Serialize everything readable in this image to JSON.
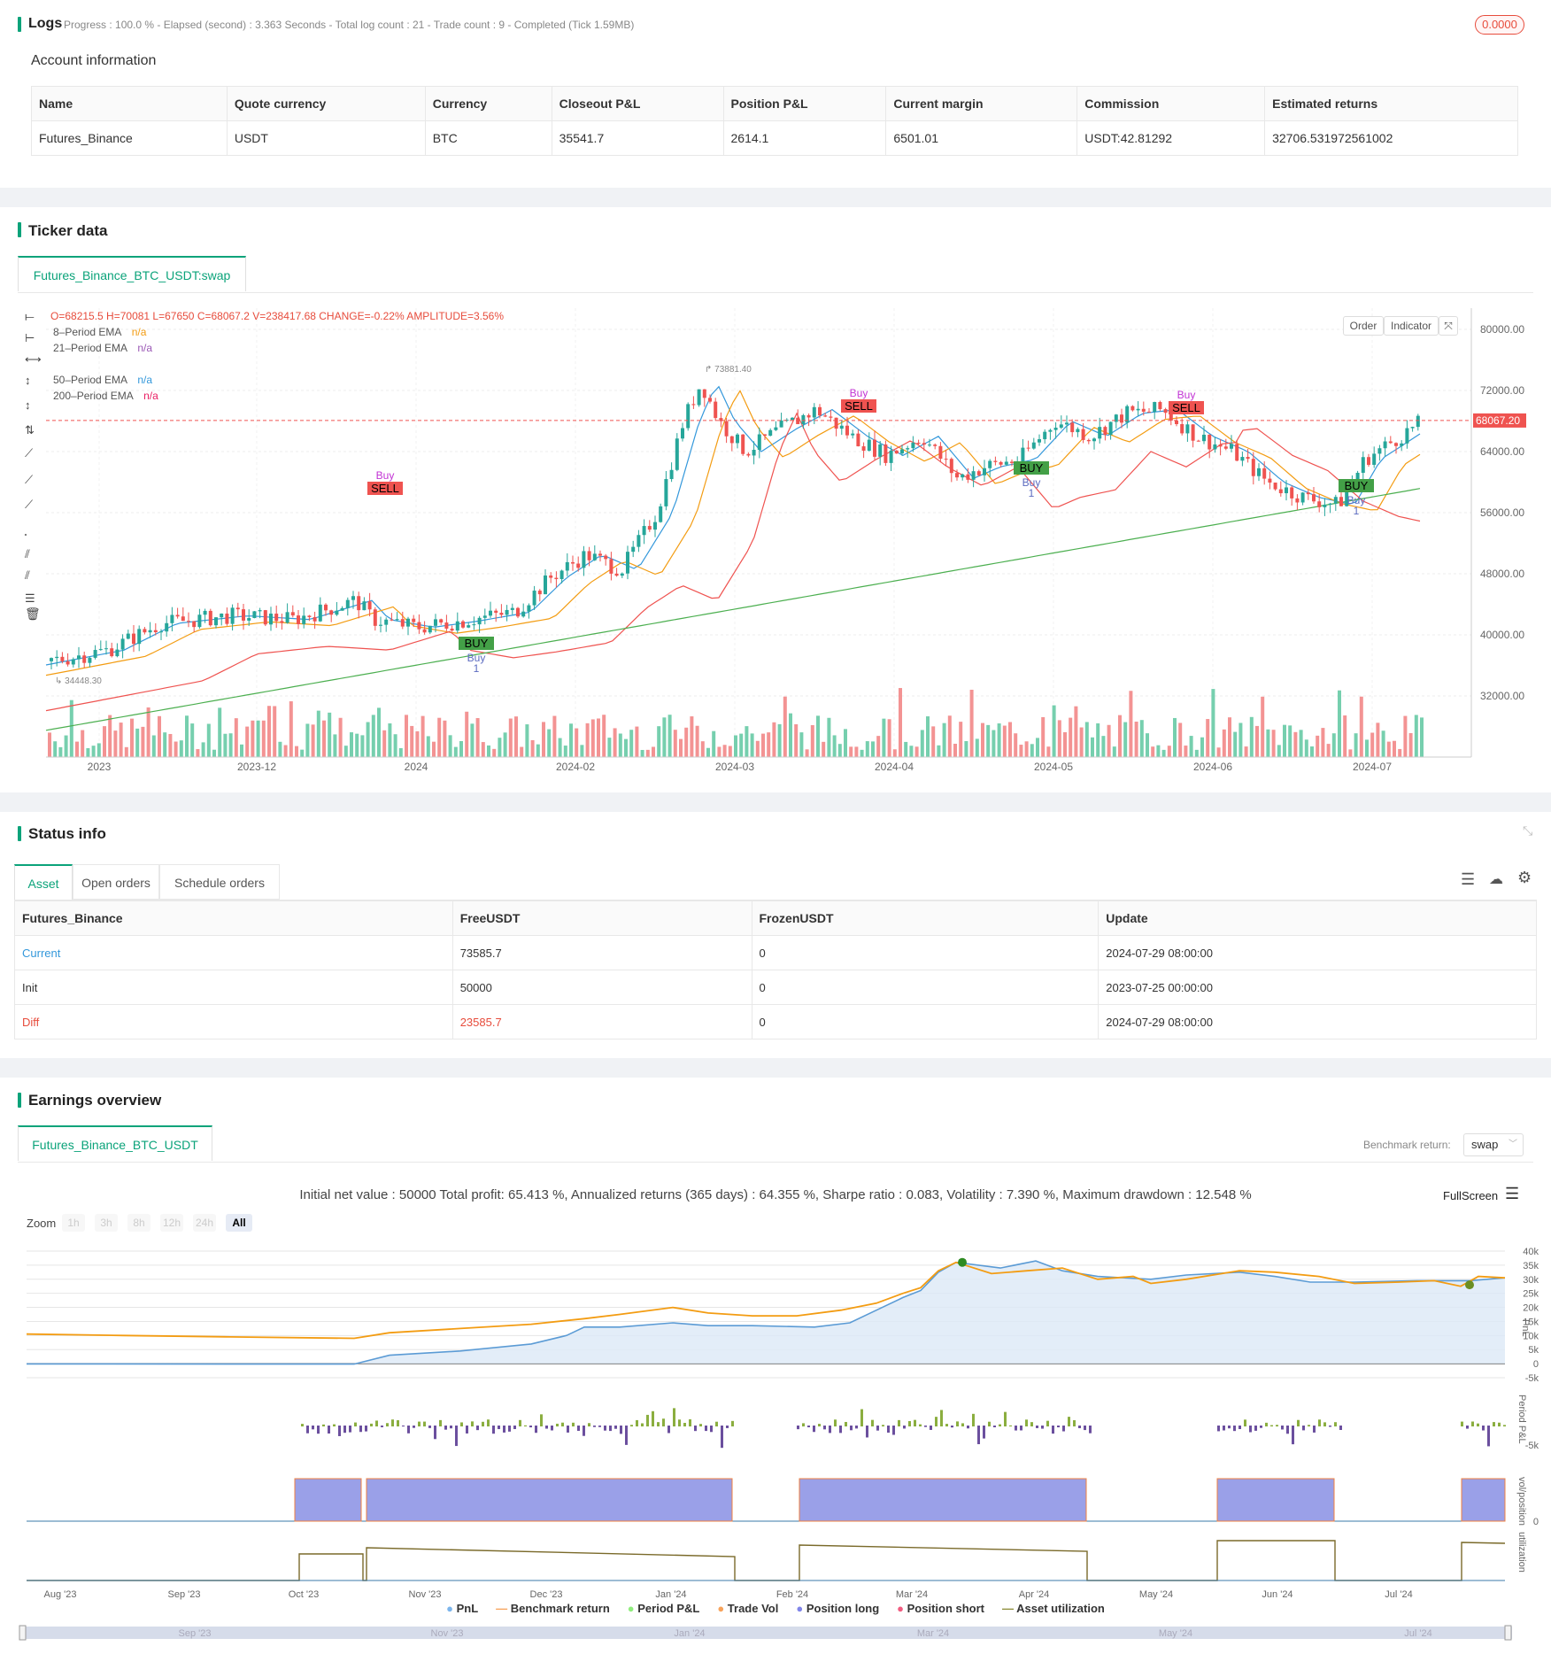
{
  "logs": {
    "title": "Logs",
    "status": "Progress : 100.0 % - Elapsed (second) : 3.363 Seconds - Total log count : 21 - Trade count : 9 - Completed (Tick 1.59MB)",
    "badge": "0.0000"
  },
  "account": {
    "title": "Account information",
    "headers": [
      "Name",
      "Quote currency",
      "Currency",
      "Closeout P&L",
      "Position P&L",
      "Current margin",
      "Commission",
      "Estimated returns"
    ],
    "row": [
      "Futures_Binance",
      "USDT",
      "BTC",
      "35541.7",
      "2614.1",
      "6501.01",
      "USDT:42.81292",
      "32706.531972561002"
    ]
  },
  "ticker": {
    "title": "Ticker data",
    "tab": "Futures_Binance_BTC_USDT:swap",
    "ohlc": "O=68215.5 H=70081 L=67650 C=68067.2 V=238417.68 CHANGE=-0.22% AMPLITUDE=3.56%",
    "legend": [
      {
        "name": "8–Period EMA",
        "value": "n/a",
        "color": "#f39c12"
      },
      {
        "name": "21–Period EMA",
        "value": "n/a",
        "color": "#9b59b6"
      },
      {
        "name": "50–Period EMA",
        "value": "n/a",
        "color": "#3498db"
      },
      {
        "name": "200–Period EMA",
        "value": "n/a",
        "color": "#e91e63"
      }
    ],
    "buttons": {
      "order": "Order",
      "indicator": "Indicator"
    },
    "price_label": "68067.20",
    "high_label": "73881.40",
    "low_label": "34448.30",
    "y_ticks": [
      "80000.00",
      "72000.00",
      "64000.00",
      "56000.00",
      "48000.00",
      "40000.00",
      "32000.00"
    ],
    "x_ticks": [
      "2023",
      "2023-12",
      "2024",
      "2024-02",
      "2024-03",
      "2024-04",
      "2024-05",
      "2024-06",
      "2024-07"
    ],
    "signals": [
      {
        "type": "SELL",
        "tag": "Buy"
      },
      {
        "type": "BUY",
        "tag": "Buy",
        "n": "1"
      },
      {
        "type": "SELL",
        "tag": "Buy"
      },
      {
        "type": "BUY",
        "tag": "Buy",
        "n": "1"
      },
      {
        "type": "SELL",
        "tag": "Buy"
      },
      {
        "type": "BUY",
        "tag": "Buy",
        "n": "1"
      }
    ]
  },
  "status": {
    "title": "Status info",
    "tabs": [
      "Asset",
      "Open orders",
      "Schedule orders"
    ],
    "headers": [
      "Futures_Binance",
      "FreeUSDT",
      "FrozenUSDT",
      "Update"
    ],
    "rows": [
      [
        "Current",
        "73585.7",
        "0",
        "2024-07-29 08:00:00"
      ],
      [
        "Init",
        "50000",
        "0",
        "2023-07-25 00:00:00"
      ],
      [
        "Diff",
        "23585.7",
        "0",
        "2024-07-29 08:00:00"
      ]
    ]
  },
  "earnings": {
    "title": "Earnings overview",
    "tab": "Futures_Binance_BTC_USDT",
    "benchmark_label": "Benchmark return:",
    "benchmark_value": "swap",
    "summary": "Initial net value : 50000 Total profit: 65.413 %, Annualized returns (365 days) : 64.355 %, Sharpe ratio : 0.083, Volatility : 7.390 %, Maximum drawdown : 12.548 %",
    "fullscreen": "FullScreen",
    "zoom_label": "Zoom",
    "zoom": [
      "1h",
      "3h",
      "8h",
      "12h",
      "24h",
      "All"
    ],
    "pnl_ticks": [
      "40k",
      "35k",
      "30k",
      "25k",
      "20k",
      "15k",
      "10k",
      "5k",
      "0",
      "-5k"
    ],
    "axis_titles": [
      "PnL",
      "Period P&L",
      "vol/position",
      "utilization"
    ],
    "period_ticks": [
      "-5k"
    ],
    "pos_ticks": [
      "0"
    ],
    "x_ticks": [
      "Aug '23",
      "Sep '23",
      "Oct '23",
      "Nov '23",
      "Dec '23",
      "Jan '24",
      "Feb '24",
      "Mar '24",
      "Apr '24",
      "May '24",
      "Jun '24",
      "Jul '24"
    ],
    "nav_ticks": [
      "Sep '23",
      "Nov '23",
      "Jan '24",
      "Mar '24",
      "May '24",
      "Jul '24"
    ],
    "legend": [
      {
        "name": "PnL",
        "color": "#7cb5ec"
      },
      {
        "name": "Benchmark return",
        "color": "#f7a35c"
      },
      {
        "name": "Period P&L",
        "color": "#90ed7d"
      },
      {
        "name": "Trade Vol",
        "color": "#f7a35c"
      },
      {
        "name": "Position long",
        "color": "#8085e9"
      },
      {
        "name": "Position short",
        "color": "#f15c80"
      },
      {
        "name": "Asset utilization",
        "color": "#8d8d3a"
      }
    ]
  }
}
